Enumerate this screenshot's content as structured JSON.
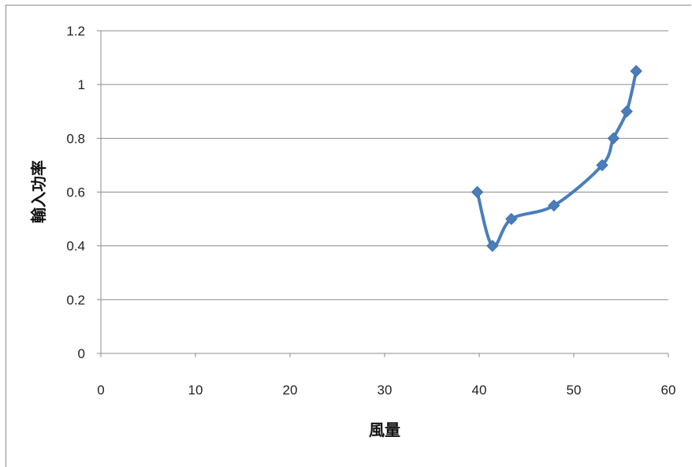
{
  "chart_data": {
    "type": "scatter",
    "title": "",
    "xlabel": "風量",
    "ylabel": "輸入功率",
    "xlim": [
      0,
      60
    ],
    "ylim": [
      0,
      1.2
    ],
    "x_ticks": [
      "0",
      "10",
      "20",
      "30",
      "40",
      "50",
      "60"
    ],
    "y_ticks": [
      "0",
      "0.2",
      "0.4",
      "0.6",
      "0.8",
      "1",
      "1.2"
    ],
    "grid": "horizontal",
    "smooth_line": true,
    "series": [
      {
        "x": [
          39.8,
          41.4,
          43.4,
          47.9,
          53.0,
          54.2,
          55.6,
          56.6
        ],
        "y": [
          0.6,
          0.4,
          0.5,
          0.55,
          0.7,
          0.8,
          0.9,
          1.05
        ],
        "color": "#4a7ebb"
      }
    ]
  }
}
